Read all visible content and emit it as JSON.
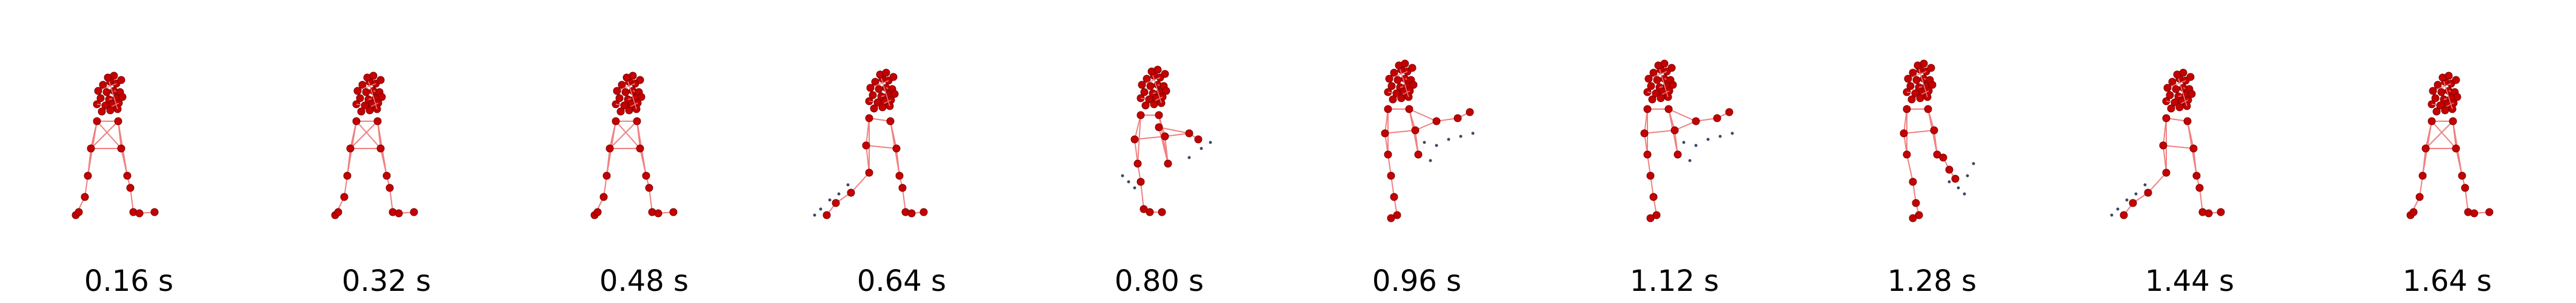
{
  "colors": {
    "skeleton_line": "#f08080",
    "joint": "#c40000",
    "joint_edge": "#7a0000",
    "trail": "#3a4a66",
    "background": "#ffffff"
  },
  "frames": [
    {
      "caption": "0.16 s",
      "pose": "standing"
    },
    {
      "caption": "0.32 s",
      "pose": "standing"
    },
    {
      "caption": "0.48 s",
      "pose": "standing"
    },
    {
      "caption": "0.64 s",
      "pose": "kick-back"
    },
    {
      "caption": "0.80 s",
      "pose": "kick-forward"
    },
    {
      "caption": "0.96 s",
      "pose": "kick-high"
    },
    {
      "caption": "1.12 s",
      "pose": "kick-high"
    },
    {
      "caption": "1.28 s",
      "pose": "kick-return"
    },
    {
      "caption": "1.44 s",
      "pose": "kick-back"
    },
    {
      "caption": "1.64 s",
      "pose": "standing"
    }
  ]
}
